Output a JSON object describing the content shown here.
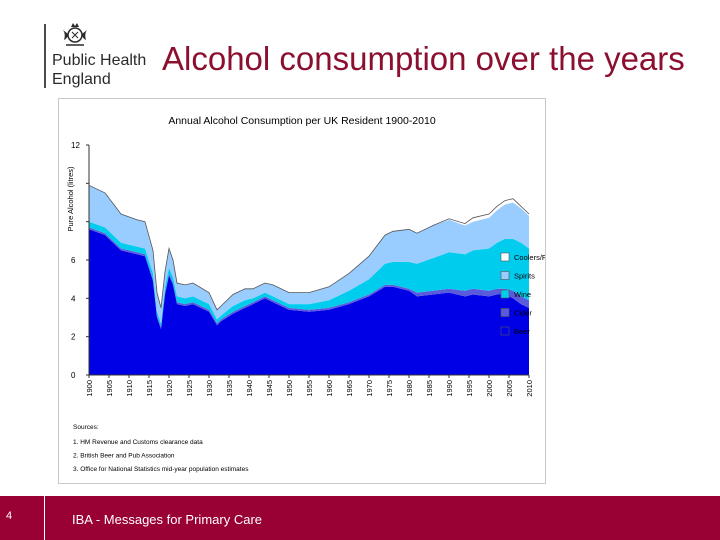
{
  "slide": {
    "title": "Alcohol consumption over the years",
    "page_number": "4",
    "footer_text": "IBA - Messages for Primary Care"
  },
  "logo": {
    "line1": "Public Health",
    "line2": "England"
  },
  "colors": {
    "brand": "#990033",
    "title": "#8b0f2e"
  },
  "sources": {
    "heading": "Sources:",
    "items": [
      "1. HM Revenue and Customs clearance data",
      "2. British Beer and Pub Association",
      "3. Office for National Statistics mid-year population estimates"
    ]
  },
  "chart_data": {
    "type": "area",
    "stacked": true,
    "title": "Annual Alcohol Consumption per UK Resident 1900-2010",
    "ylabel": "Pure Alcohol (litres)",
    "xlabel": "",
    "ylim": [
      0,
      12
    ],
    "yticks": [
      0,
      2,
      4,
      6,
      8,
      10,
      12
    ],
    "ytick_labels": [
      "0",
      "2",
      "4",
      "6",
      "",
      "",
      "12"
    ],
    "xlim": [
      1900,
      2010
    ],
    "xticks": [
      1900,
      1905,
      1910,
      1915,
      1920,
      1925,
      1930,
      1935,
      1940,
      1945,
      1950,
      1955,
      1960,
      1965,
      1970,
      1975,
      1980,
      1985,
      1990,
      1995,
      2000,
      2005,
      2010
    ],
    "xtick_labels": [
      "1900",
      "1905",
      "1910",
      "1915",
      "1920",
      "1925",
      "1930",
      "1935",
      "1940",
      "1945",
      "1950",
      "1955",
      "1960",
      "1965",
      "1970",
      "1975",
      "1980",
      "1985",
      "1990",
      "1995",
      "2000",
      "2005",
      "2010"
    ],
    "legend_position": "right",
    "x": [
      1900,
      1904,
      1908,
      1912,
      1914,
      1916,
      1917,
      1918,
      1919,
      1920,
      1921,
      1922,
      1924,
      1926,
      1930,
      1932,
      1933,
      1936,
      1939,
      1941,
      1944,
      1946,
      1950,
      1955,
      1960,
      1965,
      1970,
      1974,
      1976,
      1980,
      1982,
      1986,
      1990,
      1994,
      1996,
      2000,
      2002,
      2004,
      2006,
      2008,
      2010
    ],
    "series": [
      {
        "name": "Beer",
        "color": "#0000e6",
        "values": [
          7.6,
          7.3,
          6.5,
          6.3,
          6.2,
          4.9,
          3.0,
          2.4,
          4.2,
          5.2,
          4.7,
          3.7,
          3.6,
          3.7,
          3.3,
          2.6,
          2.8,
          3.2,
          3.5,
          3.7,
          4.0,
          3.8,
          3.4,
          3.3,
          3.4,
          3.7,
          4.1,
          4.6,
          4.6,
          4.4,
          4.1,
          4.2,
          4.3,
          4.1,
          4.2,
          4.1,
          4.2,
          4.2,
          4.0,
          3.7,
          3.5
        ]
      },
      {
        "name": "Cider",
        "color": "#5a5adc",
        "values": [
          0.1,
          0.1,
          0.1,
          0.1,
          0.1,
          0.1,
          0.1,
          0.1,
          0.1,
          0.1,
          0.1,
          0.1,
          0.1,
          0.1,
          0.1,
          0.1,
          0.1,
          0.1,
          0.1,
          0.1,
          0.1,
          0.1,
          0.1,
          0.1,
          0.1,
          0.1,
          0.1,
          0.1,
          0.1,
          0.1,
          0.2,
          0.2,
          0.2,
          0.3,
          0.3,
          0.3,
          0.3,
          0.3,
          0.4,
          0.4,
          0.4
        ]
      },
      {
        "name": "Wine",
        "color": "#00ccee",
        "values": [
          0.3,
          0.3,
          0.3,
          0.3,
          0.3,
          0.3,
          0.2,
          0.2,
          0.3,
          0.3,
          0.3,
          0.3,
          0.3,
          0.3,
          0.3,
          0.2,
          0.2,
          0.3,
          0.3,
          0.2,
          0.2,
          0.2,
          0.2,
          0.3,
          0.4,
          0.6,
          0.8,
          1.1,
          1.2,
          1.4,
          1.5,
          1.7,
          1.9,
          1.9,
          2.0,
          2.2,
          2.4,
          2.6,
          2.7,
          2.8,
          2.7
        ]
      },
      {
        "name": "Spirits",
        "color": "#99ccff",
        "values": [
          1.9,
          1.8,
          1.5,
          1.4,
          1.4,
          1.2,
          1.0,
          0.8,
          0.8,
          1.0,
          0.9,
          0.7,
          0.7,
          0.7,
          0.6,
          0.5,
          0.5,
          0.6,
          0.6,
          0.5,
          0.5,
          0.6,
          0.6,
          0.6,
          0.7,
          0.9,
          1.2,
          1.5,
          1.6,
          1.7,
          1.6,
          1.7,
          1.7,
          1.5,
          1.5,
          1.6,
          1.7,
          1.8,
          1.9,
          1.8,
          1.7
        ]
      },
      {
        "name": "Coolers/FABs",
        "color": "#ffffff",
        "values": [
          0,
          0,
          0,
          0,
          0,
          0,
          0,
          0,
          0,
          0,
          0,
          0,
          0,
          0,
          0,
          0,
          0,
          0,
          0,
          0,
          0,
          0,
          0,
          0,
          0,
          0,
          0,
          0,
          0,
          0,
          0,
          0,
          0.05,
          0.1,
          0.2,
          0.2,
          0.2,
          0.2,
          0.2,
          0.1,
          0.1
        ]
      }
    ]
  }
}
